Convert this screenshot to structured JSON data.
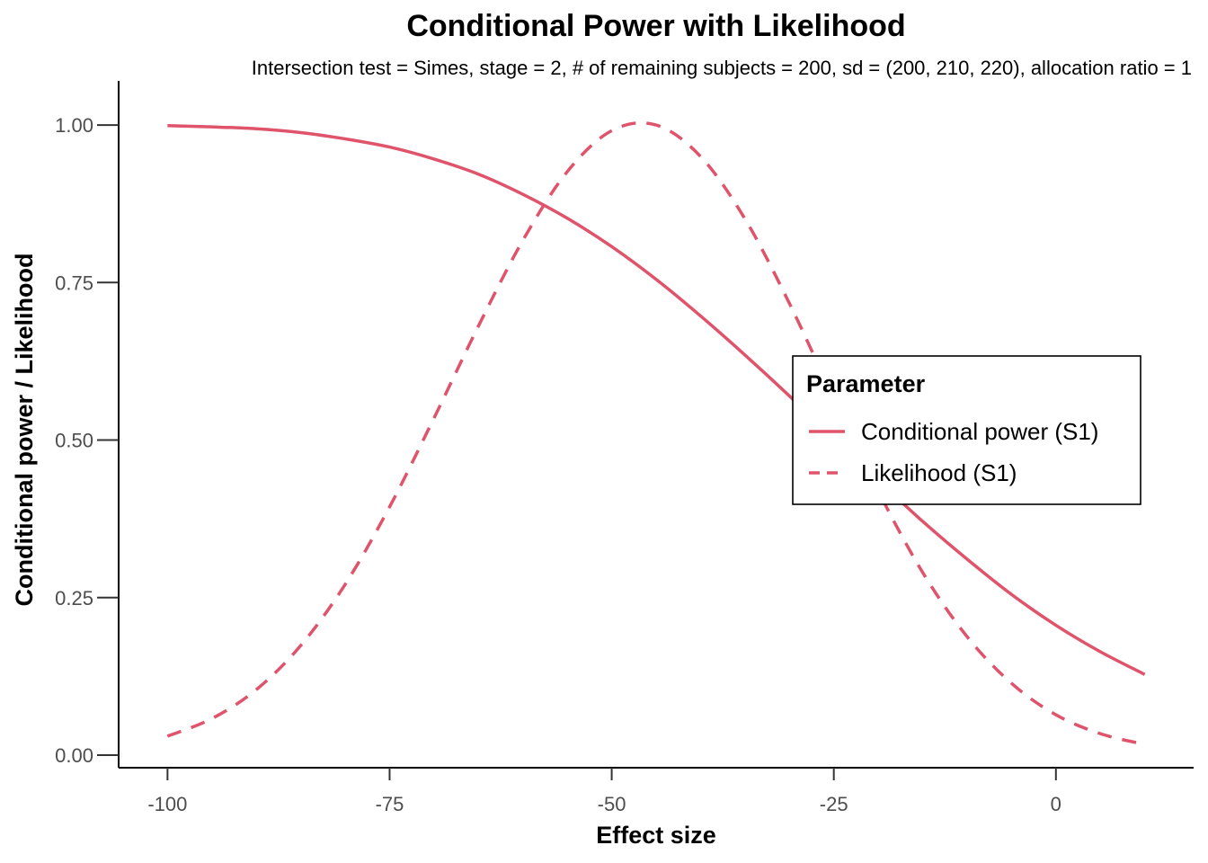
{
  "chart_data": {
    "type": "line",
    "title": "Conditional Power with Likelihood",
    "subtitle": "Intersection test = Simes, stage = 2, # of remaining subjects = 200, sd = (200, 210, 220), allocation ratio = 1",
    "xlabel": "Effect size",
    "ylabel": "Conditional power / Likelihood",
    "xlim": [
      -105.5,
      15.5
    ],
    "ylim": [
      -0.02,
      1.07
    ],
    "x_ticks": [
      -100,
      -75,
      -50,
      -25,
      0
    ],
    "x_tick_labels": [
      "-100",
      "-75",
      "-50",
      "-25",
      "0"
    ],
    "y_ticks": [
      0,
      0.25,
      0.5,
      0.75,
      1.0
    ],
    "y_tick_labels": [
      "0.00",
      "0.25",
      "0.50",
      "0.75",
      "1.00"
    ],
    "grid": false,
    "legend": {
      "title": "Parameter",
      "position": "right",
      "entries": [
        {
          "label": "Conditional power (S1)",
          "line_style": "solid"
        },
        {
          "label": "Likelihood (S1)",
          "line_style": "dashed"
        }
      ]
    },
    "series": [
      {
        "name": "Conditional power (S1)",
        "line_style": "solid",
        "color": "#df536b",
        "x": [
          -100,
          -95,
          -90,
          -85,
          -80,
          -75,
          -70,
          -65,
          -60,
          -55,
          -50,
          -45,
          -40,
          -35,
          -30,
          -25,
          -20,
          -15,
          -10,
          -5,
          0,
          5,
          10
        ],
        "y": [
          0.999,
          0.997,
          0.994,
          0.988,
          0.978,
          0.965,
          0.946,
          0.922,
          0.89,
          0.852,
          0.807,
          0.755,
          0.697,
          0.635,
          0.57,
          0.502,
          0.436,
          0.371,
          0.311,
          0.255,
          0.206,
          0.164,
          0.128
        ]
      },
      {
        "name": "Likelihood (S1)",
        "line_style": "dashed",
        "color": "#df536b",
        "x": [
          -100,
          -95,
          -90,
          -85,
          -80,
          -75,
          -70,
          -65,
          -60,
          -55,
          -50,
          -45,
          -40,
          -35,
          -30,
          -25,
          -20,
          -15,
          -10,
          -5,
          0,
          5,
          10
        ],
        "y": [
          0.03,
          0.058,
          0.104,
          0.174,
          0.271,
          0.394,
          0.535,
          0.681,
          0.817,
          0.926,
          0.991,
          1.0,
          0.95,
          0.851,
          0.717,
          0.566,
          0.419,
          0.29,
          0.188,
          0.114,
          0.064,
          0.034,
          0.017
        ]
      }
    ]
  }
}
